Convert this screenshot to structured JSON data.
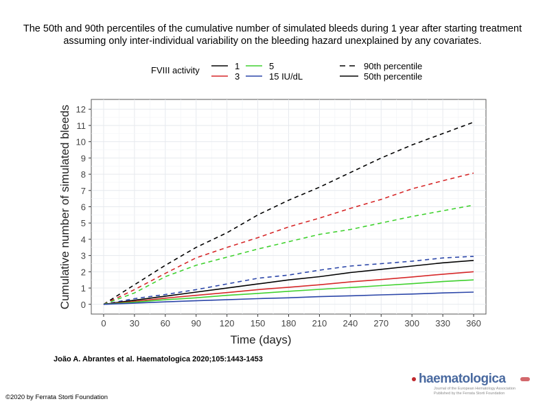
{
  "slide": {
    "title": "The 50th and 90th percentiles of the cumulative number of simulated bleeds during 1 year after starting treatment assuming only inter-individual variability on the bleeding hazard unexplained by any covariates.",
    "citation": "João A. Abrantes et al. Haematologica 2020;105:1443-1453",
    "copyright": "©2020 by Ferrata Storti Foundation",
    "logo": {
      "name": "haematologica",
      "line1": "Journal of the European Hematology Association",
      "line2": "Published by the Ferrata Storti Foundation"
    }
  },
  "chart_data": {
    "type": "line",
    "title": "",
    "xlabel": "Time (days)",
    "ylabel": "Cumulative number of simulated bleeds",
    "xlim": [
      -12,
      372
    ],
    "ylim": [
      -0.6,
      12.6
    ],
    "x_ticks": [
      0,
      30,
      60,
      90,
      120,
      150,
      180,
      210,
      240,
      270,
      300,
      330,
      360
    ],
    "y_ticks": [
      0,
      1,
      2,
      3,
      4,
      5,
      6,
      7,
      8,
      9,
      10,
      11,
      12
    ],
    "grid": true,
    "legend": {
      "position": "top",
      "color_title": "FVIII activity",
      "colors": [
        {
          "label": "1",
          "color": "#000000"
        },
        {
          "label": "3",
          "color": "#d62728"
        },
        {
          "label": "5",
          "color": "#3fd12e"
        },
        {
          "label": "15 IU/dL",
          "color": "#2a45a8"
        }
      ],
      "linetypes": [
        {
          "label": "90th percentile",
          "style": "dashed"
        },
        {
          "label": "50th percentile",
          "style": "solid"
        }
      ]
    },
    "x": [
      0,
      30,
      60,
      90,
      120,
      150,
      180,
      210,
      240,
      270,
      300,
      330,
      360
    ],
    "series": [
      {
        "activity": "1",
        "percentile": "90th percentile",
        "color": "#000000",
        "style": "dashed",
        "values": [
          0,
          1.2,
          2.4,
          3.5,
          4.4,
          5.5,
          6.4,
          7.2,
          8.1,
          9.0,
          9.8,
          10.5,
          11.2
        ]
      },
      {
        "activity": "3",
        "percentile": "90th percentile",
        "color": "#d62728",
        "style": "dashed",
        "values": [
          0,
          0.9,
          1.9,
          2.86,
          3.5,
          4.1,
          4.76,
          5.3,
          5.9,
          6.45,
          7.1,
          7.6,
          8.07
        ]
      },
      {
        "activity": "5",
        "percentile": "90th percentile",
        "color": "#3fd12e",
        "style": "dashed",
        "values": [
          0,
          0.7,
          1.7,
          2.4,
          2.9,
          3.4,
          3.85,
          4.3,
          4.6,
          5.0,
          5.4,
          5.75,
          6.1
        ]
      },
      {
        "activity": "15 IU/dL",
        "percentile": "90th percentile",
        "color": "#2a45a8",
        "style": "dashed",
        "values": [
          0,
          0.35,
          0.6,
          0.9,
          1.25,
          1.6,
          1.8,
          2.1,
          2.35,
          2.5,
          2.65,
          2.85,
          2.95
        ]
      },
      {
        "activity": "1",
        "percentile": "50th percentile",
        "color": "#000000",
        "style": "solid",
        "values": [
          0,
          0.25,
          0.5,
          0.75,
          1.0,
          1.25,
          1.5,
          1.7,
          1.95,
          2.15,
          2.35,
          2.55,
          2.7
        ]
      },
      {
        "activity": "3",
        "percentile": "50th percentile",
        "color": "#d62728",
        "style": "solid",
        "values": [
          0,
          0.18,
          0.38,
          0.55,
          0.72,
          0.9,
          1.05,
          1.2,
          1.38,
          1.52,
          1.68,
          1.85,
          2.0
        ]
      },
      {
        "activity": "5",
        "percentile": "50th percentile",
        "color": "#3fd12e",
        "style": "solid",
        "values": [
          0,
          0.13,
          0.28,
          0.4,
          0.55,
          0.67,
          0.8,
          0.92,
          1.03,
          1.15,
          1.27,
          1.4,
          1.5
        ]
      },
      {
        "activity": "15 IU/dL",
        "percentile": "50th percentile",
        "color": "#2a45a8",
        "style": "solid",
        "values": [
          0,
          0.07,
          0.15,
          0.22,
          0.28,
          0.35,
          0.4,
          0.47,
          0.52,
          0.58,
          0.63,
          0.7,
          0.75
        ]
      }
    ]
  }
}
